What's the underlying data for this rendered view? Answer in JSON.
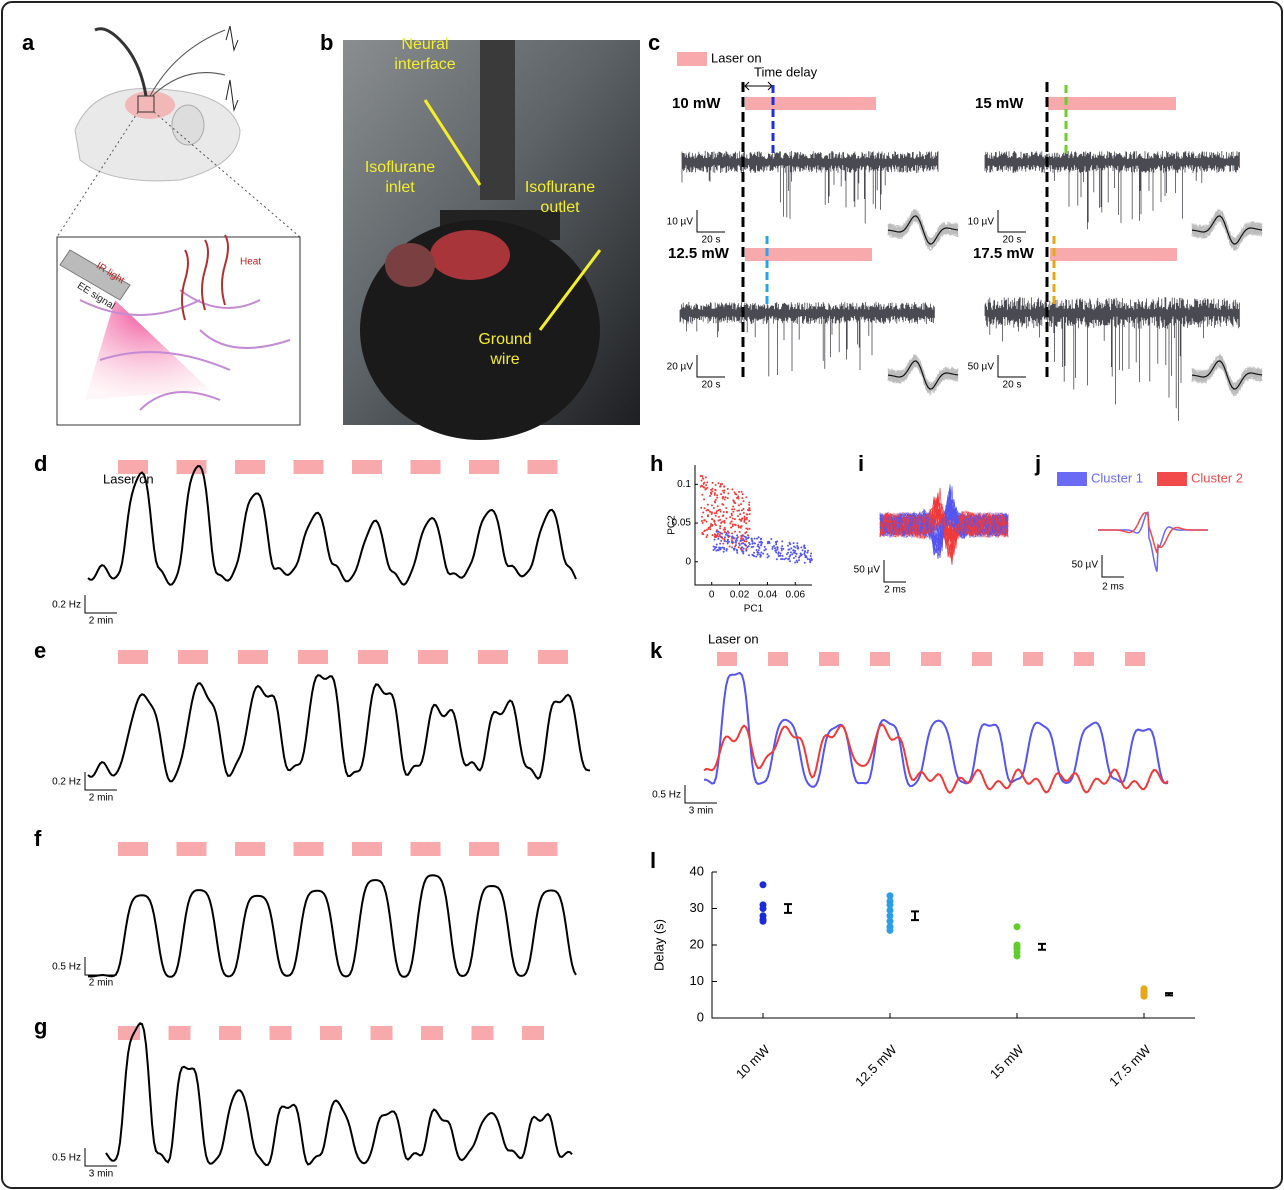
{
  "panels": {
    "a": {
      "label": "a",
      "annotations": [
        "IR light",
        "EE signal",
        "Heat"
      ]
    },
    "b": {
      "label": "b",
      "annotations": [
        "Neural interface",
        "Isoflurane inlet",
        "Isoflurane outlet",
        "Ground wire"
      ]
    },
    "c": {
      "label": "c",
      "legend": "Laser on",
      "time_delay": "Time delay",
      "conditions": [
        "10 mW",
        "15 mW",
        "12.5 mW",
        "17.5 mW"
      ],
      "scale_bars": [
        [
          "10 µV",
          "20 s"
        ],
        [
          "10 µV",
          "20 s"
        ],
        [
          "20 µV",
          "20 s"
        ],
        [
          "50 µV",
          "20 s"
        ]
      ]
    },
    "d": {
      "label": "d",
      "legend": "Laser on",
      "scale": [
        "0.2 Hz",
        "2 min"
      ]
    },
    "e": {
      "label": "e",
      "scale": [
        "0.2 Hz",
        "2 min"
      ]
    },
    "f": {
      "label": "f",
      "scale": [
        "0.5 Hz",
        "2 min"
      ]
    },
    "g": {
      "label": "g",
      "scale": [
        "0.5 Hz",
        "3 min"
      ]
    },
    "h": {
      "label": "h",
      "xlabel": "PC1",
      "ylabel": "PC2",
      "xlim": [
        -0.012,
        0.072
      ],
      "ylim": [
        -0.03,
        0.125
      ],
      "xticks": [
        0,
        0.02,
        0.04,
        0.06
      ],
      "yticks": [
        0,
        0.05,
        0.1
      ]
    },
    "i": {
      "label": "i",
      "scale": [
        "50 µV",
        "2 ms"
      ]
    },
    "j": {
      "label": "j",
      "legend": [
        "Cluster 1",
        "Cluster 2"
      ],
      "legend_colors": [
        "#6a6af5",
        "#f24a4a"
      ],
      "scale": [
        "50 µV",
        "2 ms"
      ]
    },
    "k": {
      "label": "k",
      "legend": "Laser on",
      "scale": [
        "0.5 Hz",
        "3 min"
      ]
    }
  },
  "chart_data": {
    "type": "strip",
    "label": "l",
    "ylabel": "Delay (s)",
    "categories": [
      "10 mW",
      "12.5 mW",
      "15 mW",
      "17.5 mW"
    ],
    "colors": [
      "#1c2bd8",
      "#2b9fe6",
      "#62cc2c",
      "#e6a817"
    ],
    "values": [
      [
        36.5,
        31,
        30,
        28,
        27,
        26.5
      ],
      [
        33.5,
        32,
        31,
        29.5,
        28,
        26.5,
        25,
        24
      ],
      [
        25,
        20,
        19.5,
        19,
        18,
        17
      ],
      [
        8,
        7.5,
        7,
        6.5,
        6,
        6
      ]
    ],
    "means": [
      30,
      28,
      19.5,
      6.5
    ],
    "errors": [
      1.2,
      1.2,
      0.8,
      0.3
    ],
    "ylim": [
      0,
      40
    ],
    "yticks": [
      0,
      10,
      20,
      30,
      40
    ]
  }
}
